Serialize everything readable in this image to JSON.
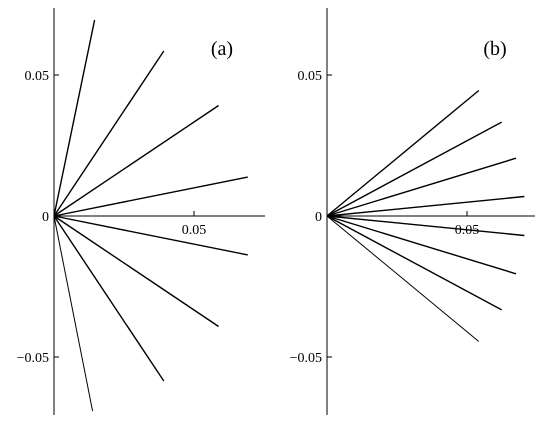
{
  "chart_data": [
    {
      "type": "line",
      "panel_label": "(a)",
      "x_ticks": [
        "0.05"
      ],
      "y_ticks": [
        "0.05",
        "0",
        "−0.05"
      ],
      "xlim": [
        -0.02,
        0.075
      ],
      "ylim": [
        -0.07,
        0.075
      ],
      "series": [
        {
          "x": [
            0,
            0.0145
          ],
          "y": [
            0,
            0.0695
          ]
        },
        {
          "x": [
            0,
            0.0392
          ],
          "y": [
            0,
            0.0585
          ]
        },
        {
          "x": [
            0,
            0.0588
          ],
          "y": [
            0,
            0.0392
          ]
        },
        {
          "x": [
            0,
            0.0692
          ],
          "y": [
            0,
            0.0138
          ]
        },
        {
          "x": [
            0,
            0.0692
          ],
          "y": [
            0,
            -0.0138
          ]
        },
        {
          "x": [
            0,
            0.0588
          ],
          "y": [
            0,
            -0.0392
          ]
        },
        {
          "x": [
            0,
            0.0392
          ],
          "y": [
            0,
            -0.0585
          ]
        },
        {
          "x": [
            0,
            0.0138
          ],
          "y": [
            0,
            -0.0692
          ]
        }
      ]
    },
    {
      "type": "line",
      "panel_label": "(b)",
      "x_ticks": [
        "0.05"
      ],
      "y_ticks": [
        "0.05",
        "0",
        "−0.05"
      ],
      "xlim": [
        -0.02,
        0.075
      ],
      "ylim": [
        -0.07,
        0.075
      ],
      "series": [
        {
          "x": [
            0,
            0.0542
          ],
          "y": [
            0,
            0.0445
          ]
        },
        {
          "x": [
            0,
            0.0624
          ],
          "y": [
            0,
            0.0333
          ]
        },
        {
          "x": [
            0,
            0.0675
          ],
          "y": [
            0,
            0.0205
          ]
        },
        {
          "x": [
            0,
            0.0705
          ],
          "y": [
            0,
            0.0069
          ]
        },
        {
          "x": [
            0,
            0.0705
          ],
          "y": [
            0,
            -0.0069
          ]
        },
        {
          "x": [
            0,
            0.0675
          ],
          "y": [
            0,
            -0.0205
          ]
        },
        {
          "x": [
            0,
            0.0624
          ],
          "y": [
            0,
            -0.0333
          ]
        },
        {
          "x": [
            0,
            0.0542
          ],
          "y": [
            0,
            -0.0445
          ]
        }
      ]
    }
  ]
}
